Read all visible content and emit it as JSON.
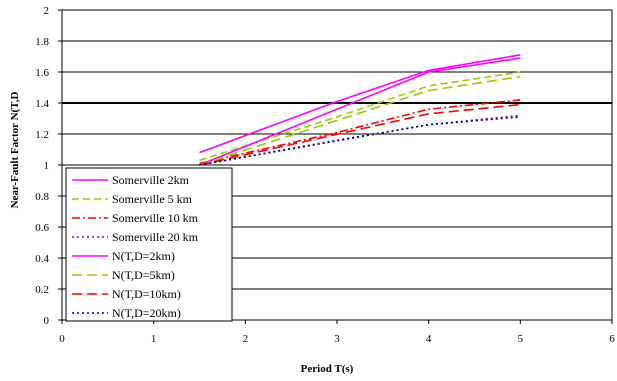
{
  "chart_data": {
    "type": "line",
    "xlabel": "Period T(s)",
    "ylabel": "Near-Fault Factor N(T,D",
    "xlim": [
      0,
      6
    ],
    "ylim": [
      0,
      2
    ],
    "x_ticks": [
      "0",
      "1",
      "2",
      "3",
      "4",
      "5",
      "6"
    ],
    "y_ticks": [
      "0",
      "0.2",
      "0.4",
      "0.6",
      "0.8",
      "1",
      "1.2",
      "1.4",
      "1.6",
      "1.8",
      "2"
    ],
    "grid": "horizontal",
    "legend_placement": "lower-left",
    "series": [
      {
        "name": "Somerville 2km",
        "color": "#ff00ff",
        "dash": "solid",
        "x": [
          1.5,
          3.0,
          4.0,
          5.0
        ],
        "y": [
          1.08,
          1.41,
          1.61,
          1.71
        ]
      },
      {
        "name": "Somerville 5 km",
        "color": "#99cc00",
        "dash": "dash",
        "x": [
          1.5,
          3.0,
          4.0,
          5.0
        ],
        "y": [
          1.03,
          1.31,
          1.51,
          1.6
        ]
      },
      {
        "name": "Somerville 10 km",
        "color": "#ff0000",
        "dash": "dashdot",
        "x": [
          1.5,
          3.0,
          4.0,
          5.0
        ],
        "y": [
          1.01,
          1.21,
          1.36,
          1.42
        ]
      },
      {
        "name": "Somerville 20 km",
        "color": "#9900cc",
        "dash": "dot",
        "x": [
          1.5,
          3.0,
          4.0,
          5.0
        ],
        "y": [
          1.0,
          1.16,
          1.26,
          1.32
        ]
      },
      {
        "name": "N(T,D=2km)",
        "color": "#ff00ff",
        "dash": "solid",
        "x": [
          1.5,
          4.0,
          5.0
        ],
        "y": [
          1.0,
          1.6,
          1.69
        ]
      },
      {
        "name": "N(T,D=5km)",
        "color": "#99cc00",
        "dash": "longdash",
        "x": [
          1.5,
          4.0,
          5.0
        ],
        "y": [
          1.0,
          1.48,
          1.57
        ]
      },
      {
        "name": "N(T,D=10km)",
        "color": "#ff0000",
        "dash": "longdash",
        "x": [
          1.5,
          4.0,
          5.0
        ],
        "y": [
          1.0,
          1.33,
          1.39
        ]
      },
      {
        "name": "N(T,D=20km)",
        "color": "#000080",
        "dash": "dot",
        "x": [
          1.5,
          4.0,
          5.0
        ],
        "y": [
          1.0,
          1.26,
          1.31
        ]
      }
    ]
  }
}
